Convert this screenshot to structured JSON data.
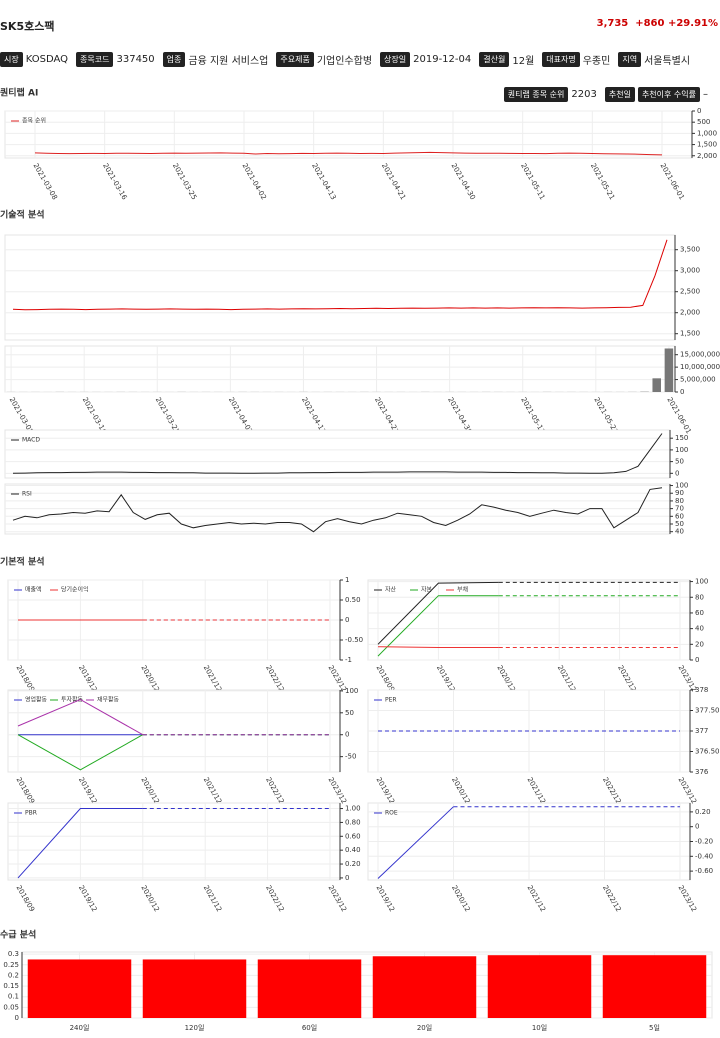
{
  "header": {
    "title": "SK5호스팩",
    "price": "3,735",
    "change": "+860",
    "change_pct": "+29.91%"
  },
  "info": [
    {
      "label": "시장",
      "value": "KOSDAQ"
    },
    {
      "label": "종목코드",
      "value": "337450"
    },
    {
      "label": "업종",
      "value": "금융 지원 서비스업"
    },
    {
      "label": "주요제품",
      "value": "기업인수합병"
    },
    {
      "label": "상장일",
      "value": "2019-12-04"
    },
    {
      "label": "결산월",
      "value": "12월"
    },
    {
      "label": "대표자명",
      "value": "우종민"
    },
    {
      "label": "지역",
      "value": "서울특별시"
    }
  ],
  "sections": [
    "퀀티랩 AI",
    "기술적 분석",
    "기본적 분석",
    "수급 분석"
  ],
  "ai": {
    "badges": [
      {
        "label": "퀀티랩 종목 순위",
        "value": "2203"
      },
      {
        "label": "추천일"
      },
      {
        "label": "추천이후 수익률",
        "value": "–"
      }
    ],
    "chart": {
      "type": "line",
      "categories": [
        "2021-03-08",
        null,
        null,
        null,
        null,
        null,
        "2021-03-16",
        null,
        null,
        null,
        null,
        null,
        "2021-03-25",
        null,
        null,
        null,
        null,
        null,
        "2021-04-02",
        null,
        null,
        null,
        null,
        null,
        "2021-04-13",
        null,
        null,
        null,
        null,
        null,
        "2021-04-21",
        null,
        null,
        null,
        null,
        null,
        "2021-04-30",
        null,
        null,
        null,
        null,
        null,
        "2021-05-11",
        null,
        null,
        null,
        null,
        null,
        "2021-05-21",
        null,
        null,
        null,
        null,
        null,
        "2021-06-01"
      ],
      "ylim": [
        2100,
        0
      ],
      "yticks": [
        0,
        500,
        {
          "value": 1000,
          "label": "1,000"
        },
        {
          "value": 1500,
          "label": "1,500"
        },
        {
          "value": 2000,
          "label": "2,000"
        }
      ],
      "series": [
        {
          "name": "종목 순위",
          "color": "#d22",
          "values": [
            1870,
            1890,
            1900,
            1905,
            1900,
            1895,
            1900,
            1890,
            1885,
            1895,
            1900,
            1890,
            1880,
            1885,
            1880,
            1875,
            1870,
            1880,
            1890,
            1920,
            1900,
            1910,
            1905,
            1895,
            1900,
            1890,
            1880,
            1890,
            1900,
            1895,
            1900,
            1880,
            1870,
            1860,
            1850,
            1860,
            1870,
            1880,
            1890,
            1885,
            1890,
            1895,
            1900,
            1900,
            1905,
            1890,
            1880,
            1885,
            1900,
            1910,
            1915,
            1920,
            1930,
            1950,
            1960
          ]
        }
      ]
    }
  },
  "technical": {
    "categories": [
      "2021-03-08",
      null,
      null,
      null,
      null,
      null,
      "2021-03-16",
      null,
      null,
      null,
      null,
      null,
      "2021-03-25",
      null,
      null,
      null,
      null,
      null,
      "2021-04-02",
      null,
      null,
      null,
      null,
      null,
      "2021-04-13",
      null,
      null,
      null,
      null,
      null,
      "2021-04-21",
      null,
      null,
      null,
      null,
      null,
      "2021-04-30",
      null,
      null,
      null,
      null,
      null,
      "2021-05-11",
      null,
      null,
      null,
      null,
      null,
      "2021-05-21",
      null,
      null,
      null,
      null,
      null,
      "2021-06-01"
    ],
    "price": {
      "type": "line",
      "ylim": [
        1350,
        3850
      ],
      "yticks": [
        {
          "value": 1500,
          "label": "1,500"
        },
        {
          "value": 2000,
          "label": "2,000"
        },
        {
          "value": 2500,
          "label": "2,500"
        },
        {
          "value": 3000,
          "label": "3,000"
        },
        {
          "value": 3500,
          "label": "3,500"
        }
      ],
      "series": [
        {
          "color": "#d00",
          "values": [
            2080,
            2070,
            2075,
            2080,
            2085,
            2080,
            2075,
            2080,
            2085,
            2090,
            2085,
            2080,
            2085,
            2090,
            2085,
            2080,
            2085,
            2080,
            2075,
            2080,
            2085,
            2090,
            2085,
            2090,
            2095,
            2090,
            2095,
            2100,
            2095,
            2100,
            2105,
            2100,
            2105,
            2110,
            2105,
            2110,
            2115,
            2110,
            2115,
            2110,
            2115,
            2110,
            2115,
            2120,
            2115,
            2120,
            2115,
            2110,
            2115,
            2120,
            2125,
            2130,
            2175,
            2875,
            3735
          ]
        }
      ]
    },
    "volume": {
      "type": "bar",
      "ylim": [
        0,
        18500000
      ],
      "yticks": [
        0,
        {
          "value": 5000000,
          "label": "5,000,000"
        },
        {
          "value": 10000000,
          "label": "10,000,000"
        },
        {
          "value": 15000000,
          "label": "15,000,000"
        }
      ],
      "series": [
        {
          "color": "#777",
          "values": [
            30000,
            20000,
            25000,
            15000,
            40000,
            20000,
            30000,
            25000,
            20000,
            35000,
            30000,
            20000,
            25000,
            15000,
            40000,
            20000,
            30000,
            25000,
            20000,
            35000,
            30000,
            20000,
            25000,
            15000,
            40000,
            20000,
            30000,
            25000,
            20000,
            35000,
            30000,
            20000,
            25000,
            15000,
            40000,
            20000,
            30000,
            25000,
            20000,
            35000,
            30000,
            20000,
            25000,
            15000,
            40000,
            20000,
            30000,
            25000,
            20000,
            35000,
            30000,
            45000,
            120000,
            5500000,
            17500000
          ]
        }
      ]
    },
    "macd": {
      "type": "line",
      "ylim": [
        -20,
        185
      ],
      "yticks": [
        0,
        50,
        100,
        150
      ],
      "series": [
        {
          "name": "MACD",
          "color": "#222",
          "values": [
            0,
            1,
            2,
            3,
            3,
            4,
            4,
            5,
            5,
            5,
            4,
            4,
            3,
            3,
            2,
            2,
            1,
            1,
            1,
            0,
            0,
            1,
            1,
            2,
            2,
            3,
            3,
            4,
            4,
            4,
            5,
            5,
            5,
            6,
            6,
            6,
            6,
            5,
            5,
            5,
            4,
            4,
            3,
            3,
            2,
            2,
            1,
            1,
            0,
            0,
            2,
            8,
            30,
            100,
            170
          ]
        }
      ]
    },
    "rsi": {
      "type": "line",
      "ylim": [
        37,
        102
      ],
      "yticks": [
        40,
        50,
        60,
        70,
        80,
        90,
        100
      ],
      "series": [
        {
          "name": "RSI",
          "color": "#222",
          "values": [
            55,
            60,
            58,
            62,
            63,
            65,
            64,
            67,
            66,
            88,
            65,
            56,
            62,
            64,
            50,
            45,
            48,
            50,
            52,
            50,
            51,
            50,
            52,
            52,
            50,
            40,
            53,
            57,
            53,
            50,
            55,
            58,
            64,
            62,
            60,
            52,
            48,
            55,
            63,
            75,
            72,
            68,
            65,
            60,
            64,
            68,
            65,
            63,
            70,
            70,
            45,
            55,
            65,
            95,
            97
          ]
        }
      ]
    }
  },
  "fundamental": [
    {
      "type": "line",
      "categories": [
        "2018/09",
        "2019/12",
        "2020/12",
        "2021/12",
        "2022/12",
        "2023/12"
      ],
      "ylim": [
        -1,
        1
      ],
      "yticks": [
        {
          "value": -1,
          "label": "-1"
        },
        {
          "value": -0.5,
          "label": "-0.50"
        },
        0,
        {
          "value": 0.5,
          "label": "0.50"
        },
        1
      ],
      "series": [
        {
          "name": "매출액",
          "color": "#33c",
          "values": [
            0,
            0,
            0,
            null,
            null,
            null
          ],
          "estimates": [
            null,
            null,
            0,
            0,
            0,
            0
          ]
        },
        {
          "name": "당기순이익",
          "color": "#e33",
          "values": [
            0,
            0,
            0,
            null,
            null,
            null
          ],
          "estimates": [
            null,
            null,
            0,
            0,
            0,
            0
          ]
        }
      ]
    },
    {
      "type": "line",
      "categories": [
        "2018/09",
        "2019/12",
        "2020/12",
        "2021/12",
        "2022/12",
        "2023/12"
      ],
      "ylim": [
        0,
        102
      ],
      "yticks": [
        0,
        20,
        40,
        60,
        80,
        100
      ],
      "series": [
        {
          "name": "자산",
          "color": "#222",
          "values": [
            20,
            98,
            99,
            null,
            null,
            null
          ],
          "estimates": [
            null,
            null,
            99,
            99,
            99,
            99
          ]
        },
        {
          "name": "자본",
          "color": "#2a2",
          "values": [
            5,
            82,
            82,
            null,
            null,
            null
          ],
          "estimates": [
            null,
            null,
            82,
            82,
            82,
            82
          ]
        },
        {
          "name": "부채",
          "color": "#e33",
          "values": [
            17,
            16,
            16,
            null,
            null,
            null
          ],
          "estimates": [
            null,
            null,
            16,
            16,
            16,
            16
          ]
        }
      ]
    },
    {
      "type": "line",
      "categories": [
        "2018/09",
        "2019/12",
        "2020/12",
        "2021/12",
        "2022/12",
        "2023/12"
      ],
      "ylim": [
        -85,
        102
      ],
      "yticks": [
        -50,
        0,
        50,
        100
      ],
      "series": [
        {
          "name": "영업활동",
          "color": "#33c",
          "values": [
            0,
            0,
            0,
            null,
            null,
            null
          ],
          "estimates": [
            null,
            null,
            0,
            0,
            0,
            0
          ]
        },
        {
          "name": "투자활동",
          "color": "#2a2",
          "values": [
            0,
            -80,
            0,
            null,
            null,
            null
          ],
          "estimates": [
            null,
            null,
            0,
            0,
            0,
            0
          ]
        },
        {
          "name": "재무활동",
          "color": "#a3a",
          "values": [
            20,
            80,
            0,
            null,
            null,
            null
          ],
          "estimates": [
            null,
            null,
            0,
            0,
            0,
            0
          ]
        }
      ]
    },
    {
      "type": "line",
      "categories": [
        "2019/12",
        "2020/12",
        "2021/12",
        "2022/12",
        "2023/12"
      ],
      "ylim": [
        376,
        378
      ],
      "yticks": [
        376,
        {
          "value": 376.5,
          "label": "376.50"
        },
        377,
        {
          "value": 377.5,
          "label": "377.50"
        },
        378
      ],
      "series": [
        {
          "name": "PER",
          "color": "#33c",
          "values": [
            null,
            null,
            null,
            null,
            null
          ],
          "estimates": [
            377,
            377,
            377,
            377,
            377
          ]
        }
      ]
    },
    {
      "type": "line",
      "categories": [
        "2018/09",
        "2019/12",
        "2020/12",
        "2021/12",
        "2022/12",
        "2023/12"
      ],
      "ylim": [
        -0.03,
        1.08
      ],
      "yticks": [
        0,
        {
          "value": 0.2,
          "label": "0.20"
        },
        {
          "value": 0.4,
          "label": "0.40"
        },
        {
          "value": 0.6,
          "label": "0.60"
        },
        {
          "value": 0.8,
          "label": "0.80"
        },
        {
          "value": 1,
          "label": "1.00"
        }
      ],
      "series": [
        {
          "name": "PBR",
          "color": "#33c",
          "values": [
            0,
            1,
            1,
            null,
            null,
            null
          ],
          "estimates": [
            null,
            null,
            1,
            1,
            1,
            1
          ]
        }
      ]
    },
    {
      "type": "line",
      "categories": [
        "2019/12",
        "2020/12",
        "2021/12",
        "2022/12",
        "2023/12"
      ],
      "ylim": [
        -0.72,
        0.32
      ],
      "yticks": [
        {
          "value": -0.6,
          "label": "-0.60"
        },
        {
          "value": -0.4,
          "label": "-0.40"
        },
        {
          "value": -0.2,
          "label": "-0.20"
        },
        0,
        {
          "value": 0.2,
          "label": "0.20"
        }
      ],
      "series": [
        {
          "name": "ROE",
          "color": "#33c",
          "values": [
            -0.7,
            0.27,
            null,
            null,
            null
          ],
          "estimates": [
            null,
            0.27,
            0.27,
            0.27,
            0.27
          ]
        }
      ]
    }
  ],
  "supply": {
    "type": "bar",
    "categories": [
      "240일",
      "120일",
      "60일",
      "20일",
      "10일",
      "5일"
    ],
    "ylim": [
      0,
      0.31
    ],
    "yticks": [
      0,
      0.05,
      0.1,
      0.15,
      0.2,
      0.25,
      0.3
    ],
    "series": [
      {
        "color": "#f00",
        "values": [
          0.275,
          0.275,
          0.275,
          0.29,
          0.295,
          0.295
        ]
      }
    ]
  }
}
